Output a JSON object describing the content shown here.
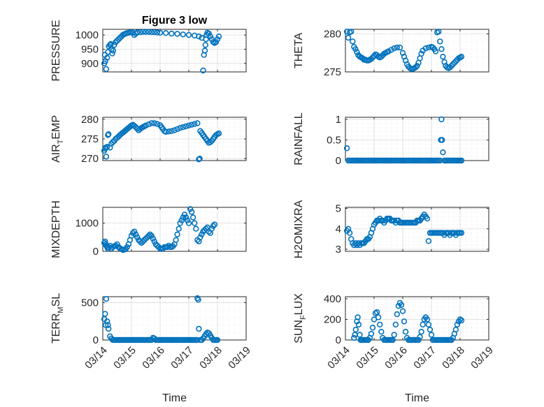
{
  "figure": {
    "title": "Figure 3 low",
    "marker_color": "#0072bd"
  },
  "chart_data": [
    {
      "type": "scatter",
      "title": "Figure 3 low",
      "ylabel": "PRESSURE",
      "xlabel": "",
      "xlim": [
        0,
        5
      ],
      "ylim": [
        870,
        1020
      ],
      "yticks": [
        900,
        950,
        1000
      ],
      "xticks": [],
      "x": [
        0.05,
        0.07,
        0.09,
        0.12,
        0.15,
        0.18,
        0.21,
        0.25,
        0.28,
        0.3,
        0.33,
        0.36,
        0.4,
        0.45,
        0.5,
        0.55,
        0.6,
        0.65,
        0.7,
        0.75,
        0.8,
        0.85,
        0.9,
        0.95,
        1.0,
        1.05,
        1.1,
        1.15,
        1.2,
        1.3,
        1.4,
        1.5,
        1.6,
        1.7,
        1.8,
        1.9,
        2.0,
        2.2,
        2.4,
        2.6,
        2.8,
        3.0,
        3.2,
        3.35,
        3.45,
        3.5,
        3.53,
        3.56,
        3.58,
        3.6,
        3.62,
        3.65,
        3.7,
        3.75,
        3.8,
        3.85,
        3.9,
        3.95,
        4.0,
        4.05
      ],
      "y": [
        900,
        930,
        908,
        880,
        920,
        940,
        960,
        965,
        968,
        950,
        935,
        945,
        965,
        975,
        980,
        985,
        990,
        995,
        1000,
        1003,
        1005,
        1007,
        1008,
        1009,
        1010,
        1008,
        1000,
        1005,
        1009,
        1010,
        1011,
        1011,
        1011,
        1010,
        1010,
        1009,
        1008,
        1007,
        1005,
        1004,
        1002,
        1000,
        998,
        995,
        990,
        875,
        930,
        945,
        965,
        985,
        1000,
        1008,
        1005,
        995,
        985,
        975,
        972,
        975,
        985,
        995
      ]
    },
    {
      "type": "scatter",
      "ylabel": "THETA",
      "xlabel": "",
      "xlim": [
        0,
        5
      ],
      "ylim": [
        275,
        280.6
      ],
      "yticks": [
        275,
        280
      ],
      "xticks": [],
      "x": [
        0.05,
        0.1,
        0.15,
        0.2,
        0.25,
        0.3,
        0.35,
        0.4,
        0.45,
        0.5,
        0.55,
        0.6,
        0.65,
        0.7,
        0.75,
        0.8,
        0.85,
        0.9,
        0.95,
        1.0,
        1.05,
        1.1,
        1.15,
        1.2,
        1.25,
        1.3,
        1.35,
        1.4,
        1.45,
        1.5,
        1.6,
        1.7,
        1.8,
        1.9,
        2.0,
        2.05,
        2.1,
        2.15,
        2.2,
        2.25,
        2.3,
        2.35,
        2.4,
        2.45,
        2.5,
        2.55,
        2.6,
        2.65,
        2.7,
        2.8,
        2.9,
        3.0,
        3.05,
        3.1,
        3.15,
        3.2,
        3.25,
        3.3,
        3.35,
        3.4,
        3.45,
        3.5,
        3.55,
        3.6,
        3.65,
        3.7,
        3.75,
        3.8,
        3.85,
        3.9,
        3.95,
        4.0,
        4.05
      ],
      "y": [
        280.3,
        279.5,
        280.2,
        280.3,
        279.0,
        278.3,
        278.0,
        277.6,
        277.2,
        277.0,
        276.9,
        276.8,
        276.6,
        276.6,
        276.5,
        276.5,
        276.6,
        276.7,
        276.9,
        277.1,
        277.3,
        277.2,
        277.0,
        276.9,
        277.0,
        277.2,
        277.4,
        277.5,
        277.6,
        277.7,
        277.9,
        278.1,
        278.2,
        278.2,
        277.5,
        277.0,
        276.5,
        276.0,
        275.7,
        275.5,
        275.4,
        275.4,
        275.5,
        275.6,
        275.8,
        276.2,
        276.8,
        277.4,
        277.8,
        278.1,
        278.2,
        278.3,
        278.2,
        278.0,
        277.7,
        280.2,
        280.3,
        279.0,
        278.0,
        277.0,
        276.3,
        275.8,
        275.6,
        275.5,
        275.6,
        275.8,
        276.0,
        276.2,
        276.4,
        276.6,
        276.8,
        276.9,
        277.0
      ]
    },
    {
      "type": "scatter",
      "ylabel": "AIR_TEMP",
      "xlabel": "",
      "xlim": [
        0,
        5
      ],
      "ylim": [
        269.5,
        280.5
      ],
      "yticks": [
        270,
        275,
        280
      ],
      "xticks": [],
      "x": [
        0.05,
        0.08,
        0.1,
        0.12,
        0.15,
        0.18,
        0.2,
        0.25,
        0.3,
        0.35,
        0.4,
        0.45,
        0.5,
        0.55,
        0.6,
        0.65,
        0.7,
        0.75,
        0.8,
        0.85,
        0.9,
        0.95,
        1.0,
        1.05,
        1.1,
        1.15,
        1.2,
        1.25,
        1.3,
        1.35,
        1.4,
        1.45,
        1.5,
        1.6,
        1.7,
        1.8,
        1.9,
        2.0,
        2.05,
        2.1,
        2.15,
        2.2,
        2.3,
        2.4,
        2.5,
        2.6,
        2.7,
        2.8,
        2.9,
        3.0,
        3.1,
        3.2,
        3.3,
        3.35,
        3.38,
        3.4,
        3.45,
        3.5,
        3.55,
        3.6,
        3.65,
        3.7,
        3.75,
        3.8,
        3.85,
        3.9,
        3.95,
        4.0,
        4.05
      ],
      "y": [
        272.0,
        272.5,
        272.8,
        270.5,
        273.0,
        276.0,
        276.2,
        272.8,
        273.8,
        274.2,
        274.5,
        275.0,
        275.3,
        275.6,
        276.0,
        276.3,
        276.6,
        276.9,
        277.2,
        277.5,
        277.8,
        278.1,
        278.4,
        278.6,
        278.3,
        278.0,
        277.6,
        277.2,
        277.5,
        277.8,
        278.0,
        278.2,
        278.4,
        278.7,
        279.0,
        279.0,
        278.8,
        278.5,
        278.0,
        277.5,
        277.0,
        276.8,
        276.9,
        277.0,
        277.2,
        277.5,
        277.8,
        278.0,
        278.2,
        278.4,
        278.6,
        278.8,
        279.0,
        269.8,
        270.0,
        277.0,
        276.5,
        276.0,
        275.5,
        275.0,
        274.5,
        274.0,
        274.2,
        274.5,
        275.0,
        275.5,
        276.0,
        276.2,
        276.4
      ]
    },
    {
      "type": "scatter",
      "ylabel": "RAINFALL",
      "xlabel": "",
      "xlim": [
        0,
        5
      ],
      "ylim": [
        0,
        1.05
      ],
      "yticks": [
        0,
        0.5,
        1
      ],
      "xticks": [],
      "x": [
        0.05,
        0.1,
        0.15,
        0.2,
        0.25,
        0.3,
        0.35,
        0.4,
        0.45,
        0.5,
        0.55,
        0.6,
        0.65,
        0.7,
        0.75,
        0.8,
        0.85,
        0.9,
        0.95,
        1.0,
        1.05,
        1.1,
        1.15,
        1.2,
        1.25,
        1.3,
        1.35,
        1.4,
        1.45,
        1.5,
        1.55,
        1.6,
        1.65,
        1.7,
        1.75,
        1.8,
        1.85,
        1.9,
        1.95,
        2.0,
        2.05,
        2.1,
        2.15,
        2.2,
        2.25,
        2.3,
        2.35,
        2.4,
        2.45,
        2.5,
        2.55,
        2.6,
        2.65,
        2.7,
        2.75,
        2.8,
        2.85,
        2.9,
        2.95,
        3.0,
        3.05,
        3.1,
        3.15,
        3.2,
        3.25,
        3.3,
        3.33,
        3.35,
        3.37,
        3.4,
        3.45,
        3.5,
        3.55,
        3.6,
        3.65,
        3.7,
        3.75,
        3.8,
        3.85,
        3.9,
        3.95,
        4.0,
        4.05
      ],
      "y": [
        0.3,
        0,
        0,
        0,
        0,
        0,
        0,
        0,
        0,
        0,
        0,
        0,
        0,
        0,
        0,
        0,
        0,
        0,
        0,
        0,
        0,
        0,
        0,
        0,
        0,
        0,
        0,
        0,
        0,
        0,
        0,
        0,
        0,
        0,
        0,
        0,
        0,
        0,
        0,
        0,
        0,
        0,
        0,
        0,
        0,
        0,
        0,
        0,
        0,
        0,
        0,
        0,
        0,
        0,
        0,
        0,
        0,
        0,
        0,
        0,
        0,
        0,
        0,
        0,
        0,
        0,
        0.5,
        1.0,
        0.5,
        0.2,
        0,
        0,
        0,
        0,
        0,
        0,
        0,
        0,
        0,
        0,
        0,
        0,
        0
      ]
    },
    {
      "type": "scatter",
      "ylabel": "MIXDEPTH",
      "xlabel": "",
      "xlim": [
        0,
        5
      ],
      "ylim": [
        0,
        1560
      ],
      "yticks": [
        0,
        1000
      ],
      "xticks": [],
      "x": [
        0.05,
        0.08,
        0.1,
        0.12,
        0.15,
        0.18,
        0.2,
        0.25,
        0.3,
        0.35,
        0.4,
        0.45,
        0.5,
        0.55,
        0.6,
        0.65,
        0.7,
        0.75,
        0.8,
        0.85,
        0.9,
        0.95,
        1.0,
        1.05,
        1.1,
        1.15,
        1.2,
        1.25,
        1.3,
        1.35,
        1.4,
        1.45,
        1.5,
        1.55,
        1.6,
        1.65,
        1.7,
        1.75,
        1.8,
        1.85,
        1.9,
        1.95,
        2.0,
        2.05,
        2.1,
        2.15,
        2.2,
        2.25,
        2.3,
        2.35,
        2.4,
        2.45,
        2.5,
        2.55,
        2.6,
        2.65,
        2.7,
        2.75,
        2.8,
        2.85,
        2.9,
        2.95,
        3.0,
        3.05,
        3.1,
        3.15,
        3.2,
        3.25,
        3.3,
        3.35,
        3.4,
        3.45,
        3.5,
        3.55,
        3.6,
        3.65,
        3.7,
        3.75,
        3.8,
        3.85,
        3.9
      ],
      "y": [
        300,
        350,
        250,
        200,
        150,
        100,
        150,
        200,
        100,
        150,
        180,
        200,
        250,
        150,
        100,
        80,
        50,
        60,
        80,
        150,
        250,
        400,
        550,
        650,
        700,
        600,
        500,
        400,
        350,
        300,
        350,
        400,
        450,
        500,
        550,
        600,
        550,
        450,
        350,
        250,
        200,
        150,
        100,
        80,
        100,
        150,
        150,
        150,
        200,
        150,
        150,
        180,
        250,
        400,
        600,
        800,
        1000,
        1100,
        1200,
        1300,
        1200,
        1100,
        1000,
        1500,
        1400,
        1200,
        1000,
        800,
        400,
        350,
        500,
        600,
        700,
        750,
        800,
        850,
        700,
        650,
        800,
        900,
        950
      ]
    },
    {
      "type": "scatter",
      "ylabel": "H2OMIXRA",
      "xlabel": "",
      "xlim": [
        0,
        5
      ],
      "ylim": [
        2.9,
        5.05
      ],
      "yticks": [
        3,
        4,
        5
      ],
      "xticks": [],
      "x": [
        0.05,
        0.1,
        0.15,
        0.2,
        0.25,
        0.3,
        0.35,
        0.4,
        0.45,
        0.5,
        0.55,
        0.6,
        0.65,
        0.7,
        0.75,
        0.8,
        0.85,
        0.9,
        0.95,
        1.0,
        1.05,
        1.1,
        1.15,
        1.2,
        1.25,
        1.3,
        1.35,
        1.4,
        1.45,
        1.5,
        1.55,
        1.6,
        1.65,
        1.7,
        1.75,
        1.8,
        1.85,
        1.9,
        1.95,
        2.0,
        2.05,
        2.1,
        2.15,
        2.2,
        2.25,
        2.3,
        2.35,
        2.4,
        2.45,
        2.5,
        2.55,
        2.6,
        2.65,
        2.7,
        2.75,
        2.8,
        2.85,
        2.9,
        2.95,
        3.0,
        3.05,
        3.1,
        3.15,
        3.2,
        3.25,
        3.3,
        3.35,
        3.4,
        3.45,
        3.5,
        3.55,
        3.6,
        3.65,
        3.7,
        3.75,
        3.8,
        3.85,
        3.9,
        3.95,
        4.0,
        4.05
      ],
      "y": [
        3.9,
        4.0,
        3.8,
        3.5,
        3.3,
        3.2,
        3.3,
        3.2,
        3.3,
        3.2,
        3.3,
        3.3,
        3.3,
        3.4,
        3.5,
        3.5,
        3.6,
        3.8,
        4.0,
        4.2,
        4.3,
        4.4,
        4.4,
        4.5,
        4.4,
        4.4,
        4.3,
        4.4,
        4.5,
        4.5,
        4.5,
        4.4,
        4.4,
        4.4,
        4.3,
        4.4,
        4.4,
        4.3,
        4.3,
        4.3,
        4.3,
        4.3,
        4.3,
        4.3,
        4.3,
        4.3,
        4.3,
        4.3,
        4.3,
        4.4,
        4.4,
        4.4,
        4.5,
        4.6,
        4.7,
        4.6,
        4.5,
        3.4,
        3.8,
        3.8,
        3.8,
        3.8,
        3.8,
        3.8,
        3.8,
        3.8,
        3.8,
        3.8,
        3.7,
        3.8,
        3.8,
        3.8,
        3.7,
        3.8,
        3.8,
        3.8,
        3.7,
        3.8,
        3.8,
        3.8,
        3.8
      ]
    },
    {
      "type": "scatter",
      "ylabel": "TERR_MSL",
      "xlabel": "Time",
      "xlim": [
        0,
        5
      ],
      "ylim": [
        0,
        580
      ],
      "yticks": [
        0,
        500
      ],
      "xticks": [
        "03/14",
        "03/15",
        "03/16",
        "03/17",
        "03/18",
        "03/19"
      ],
      "x": [
        0.05,
        0.08,
        0.1,
        0.12,
        0.15,
        0.18,
        0.2,
        0.25,
        0.3,
        0.35,
        0.4,
        0.45,
        0.5,
        0.55,
        0.6,
        0.65,
        0.7,
        0.75,
        0.8,
        0.85,
        0.9,
        0.95,
        1.0,
        1.05,
        1.1,
        1.15,
        1.2,
        1.25,
        1.3,
        1.35,
        1.4,
        1.45,
        1.5,
        1.55,
        1.6,
        1.65,
        1.7,
        1.75,
        1.8,
        1.85,
        1.9,
        1.95,
        2.0,
        2.05,
        2.1,
        2.15,
        2.2,
        2.25,
        2.3,
        2.35,
        2.4,
        2.45,
        2.5,
        2.55,
        2.6,
        2.65,
        2.7,
        2.75,
        2.8,
        2.85,
        2.9,
        2.95,
        3.0,
        3.05,
        3.1,
        3.15,
        3.2,
        3.25,
        3.28,
        3.3,
        3.33,
        3.35,
        3.4,
        3.45,
        3.5,
        3.55,
        3.6,
        3.65,
        3.7,
        3.75,
        3.8,
        3.85,
        3.9,
        3.95,
        4.0
      ],
      "y": [
        280,
        350,
        200,
        550,
        250,
        200,
        150,
        50,
        20,
        0,
        0,
        0,
        0,
        0,
        0,
        0,
        0,
        0,
        0,
        0,
        0,
        0,
        0,
        0,
        0,
        0,
        0,
        0,
        0,
        0,
        0,
        0,
        0,
        0,
        0,
        0,
        0,
        30,
        20,
        0,
        0,
        0,
        0,
        0,
        0,
        0,
        0,
        0,
        0,
        0,
        0,
        0,
        0,
        0,
        0,
        0,
        0,
        0,
        0,
        0,
        0,
        0,
        0,
        0,
        0,
        0,
        0,
        0,
        0,
        560,
        540,
        150,
        0,
        0,
        20,
        50,
        80,
        100,
        90,
        60,
        30,
        0,
        0,
        0,
        0
      ]
    },
    {
      "type": "scatter",
      "ylabel": "SUN_FLUX",
      "xlabel": "Time",
      "xlim": [
        0,
        5
      ],
      "ylim": [
        0,
        420
      ],
      "yticks": [
        0,
        200,
        400
      ],
      "xticks": [
        "03/14",
        "03/15",
        "03/16",
        "03/17",
        "03/18",
        "03/19"
      ],
      "x": [
        0.3,
        0.33,
        0.36,
        0.4,
        0.43,
        0.46,
        0.5,
        0.53,
        0.56,
        0.6,
        0.65,
        0.7,
        0.75,
        0.8,
        0.85,
        0.9,
        0.95,
        1.0,
        1.05,
        1.1,
        1.15,
        1.2,
        1.25,
        1.3,
        1.35,
        1.4,
        1.45,
        1.5,
        1.55,
        1.6,
        1.65,
        1.7,
        1.75,
        1.8,
        1.85,
        1.9,
        1.95,
        2.0,
        2.05,
        2.1,
        2.15,
        2.2,
        2.25,
        2.3,
        2.35,
        2.4,
        2.45,
        2.5,
        2.55,
        2.6,
        2.65,
        2.7,
        2.75,
        2.8,
        2.85,
        2.9,
        2.95,
        3.0,
        3.05,
        3.1,
        3.15,
        3.2,
        3.25,
        3.3,
        3.35,
        3.4,
        3.45,
        3.5,
        3.55,
        3.6,
        3.65,
        3.7,
        3.75,
        3.8,
        3.85,
        3.9,
        3.95,
        4.0,
        4.05
      ],
      "y": [
        20,
        50,
        100,
        180,
        220,
        150,
        50,
        0,
        0,
        0,
        0,
        0,
        0,
        0,
        20,
        60,
        120,
        200,
        260,
        270,
        220,
        150,
        80,
        20,
        0,
        0,
        0,
        0,
        0,
        0,
        0,
        50,
        150,
        250,
        330,
        360,
        340,
        280,
        180,
        80,
        20,
        0,
        0,
        0,
        0,
        0,
        0,
        0,
        0,
        30,
        80,
        150,
        200,
        220,
        200,
        150,
        100,
        50,
        0,
        0,
        0,
        0,
        0,
        0,
        0,
        0,
        0,
        0,
        0,
        0,
        0,
        0,
        20,
        60,
        100,
        150,
        180,
        200,
        190
      ]
    }
  ]
}
